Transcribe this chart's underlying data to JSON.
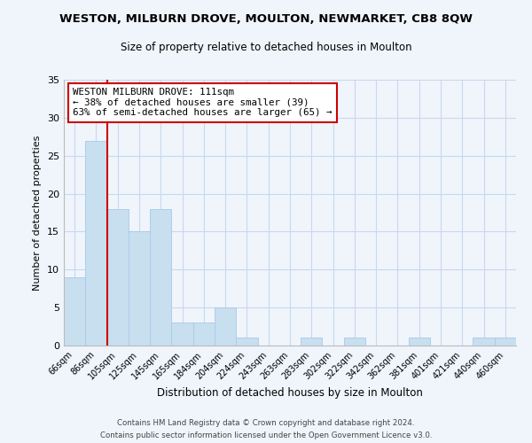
{
  "title": "WESTON, MILBURN DROVE, MOULTON, NEWMARKET, CB8 8QW",
  "subtitle": "Size of property relative to detached houses in Moulton",
  "xlabel": "Distribution of detached houses by size in Moulton",
  "ylabel": "Number of detached properties",
  "bar_color": "#c8dff0",
  "bar_edge_color": "#a8c8e8",
  "categories": [
    "66sqm",
    "86sqm",
    "105sqm",
    "125sqm",
    "145sqm",
    "165sqm",
    "184sqm",
    "204sqm",
    "224sqm",
    "243sqm",
    "263sqm",
    "283sqm",
    "302sqm",
    "322sqm",
    "342sqm",
    "362sqm",
    "381sqm",
    "401sqm",
    "421sqm",
    "440sqm",
    "460sqm"
  ],
  "values": [
    9,
    27,
    18,
    15,
    18,
    3,
    3,
    5,
    1,
    0,
    0,
    1,
    0,
    1,
    0,
    0,
    1,
    0,
    0,
    1,
    1
  ],
  "ylim": [
    0,
    35
  ],
  "yticks": [
    0,
    5,
    10,
    15,
    20,
    25,
    30,
    35
  ],
  "vline_color": "#cc0000",
  "vline_index": 2,
  "annotation_title": "WESTON MILBURN DROVE: 111sqm",
  "annotation_line1": "← 38% of detached houses are smaller (39)",
  "annotation_line2": "63% of semi-detached houses are larger (65) →",
  "annotation_box_edge": "#cc0000",
  "footer_line1": "Contains HM Land Registry data © Crown copyright and database right 2024.",
  "footer_line2": "Contains public sector information licensed under the Open Government Licence v3.0.",
  "background_color": "#f0f5fc",
  "grid_color": "#c8d8ec"
}
